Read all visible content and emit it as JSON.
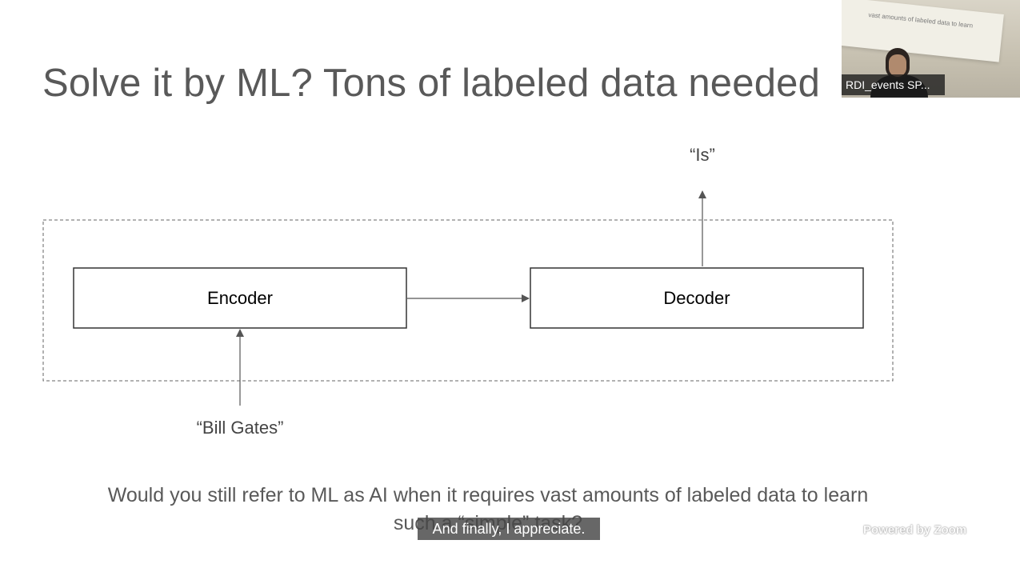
{
  "slide": {
    "title": "Solve it by ML? Tons of labeled data needed",
    "diagram": {
      "encoder_label": "Encoder",
      "decoder_label": "Decoder",
      "input_label": "“Bill Gates”",
      "output_label": "“Is”"
    },
    "question_line1": "Would you still refer to ML as AI when it requires vast amounts of labeled data to learn",
    "question_line2": "such a “simple” task?"
  },
  "caption": "And finally, I appreciate.",
  "video": {
    "participant_name": "RDI_events SP...",
    "screen_text": "vast amounts of labeled data to learn"
  },
  "branding": {
    "powered_by": "Powered by Zoom"
  }
}
